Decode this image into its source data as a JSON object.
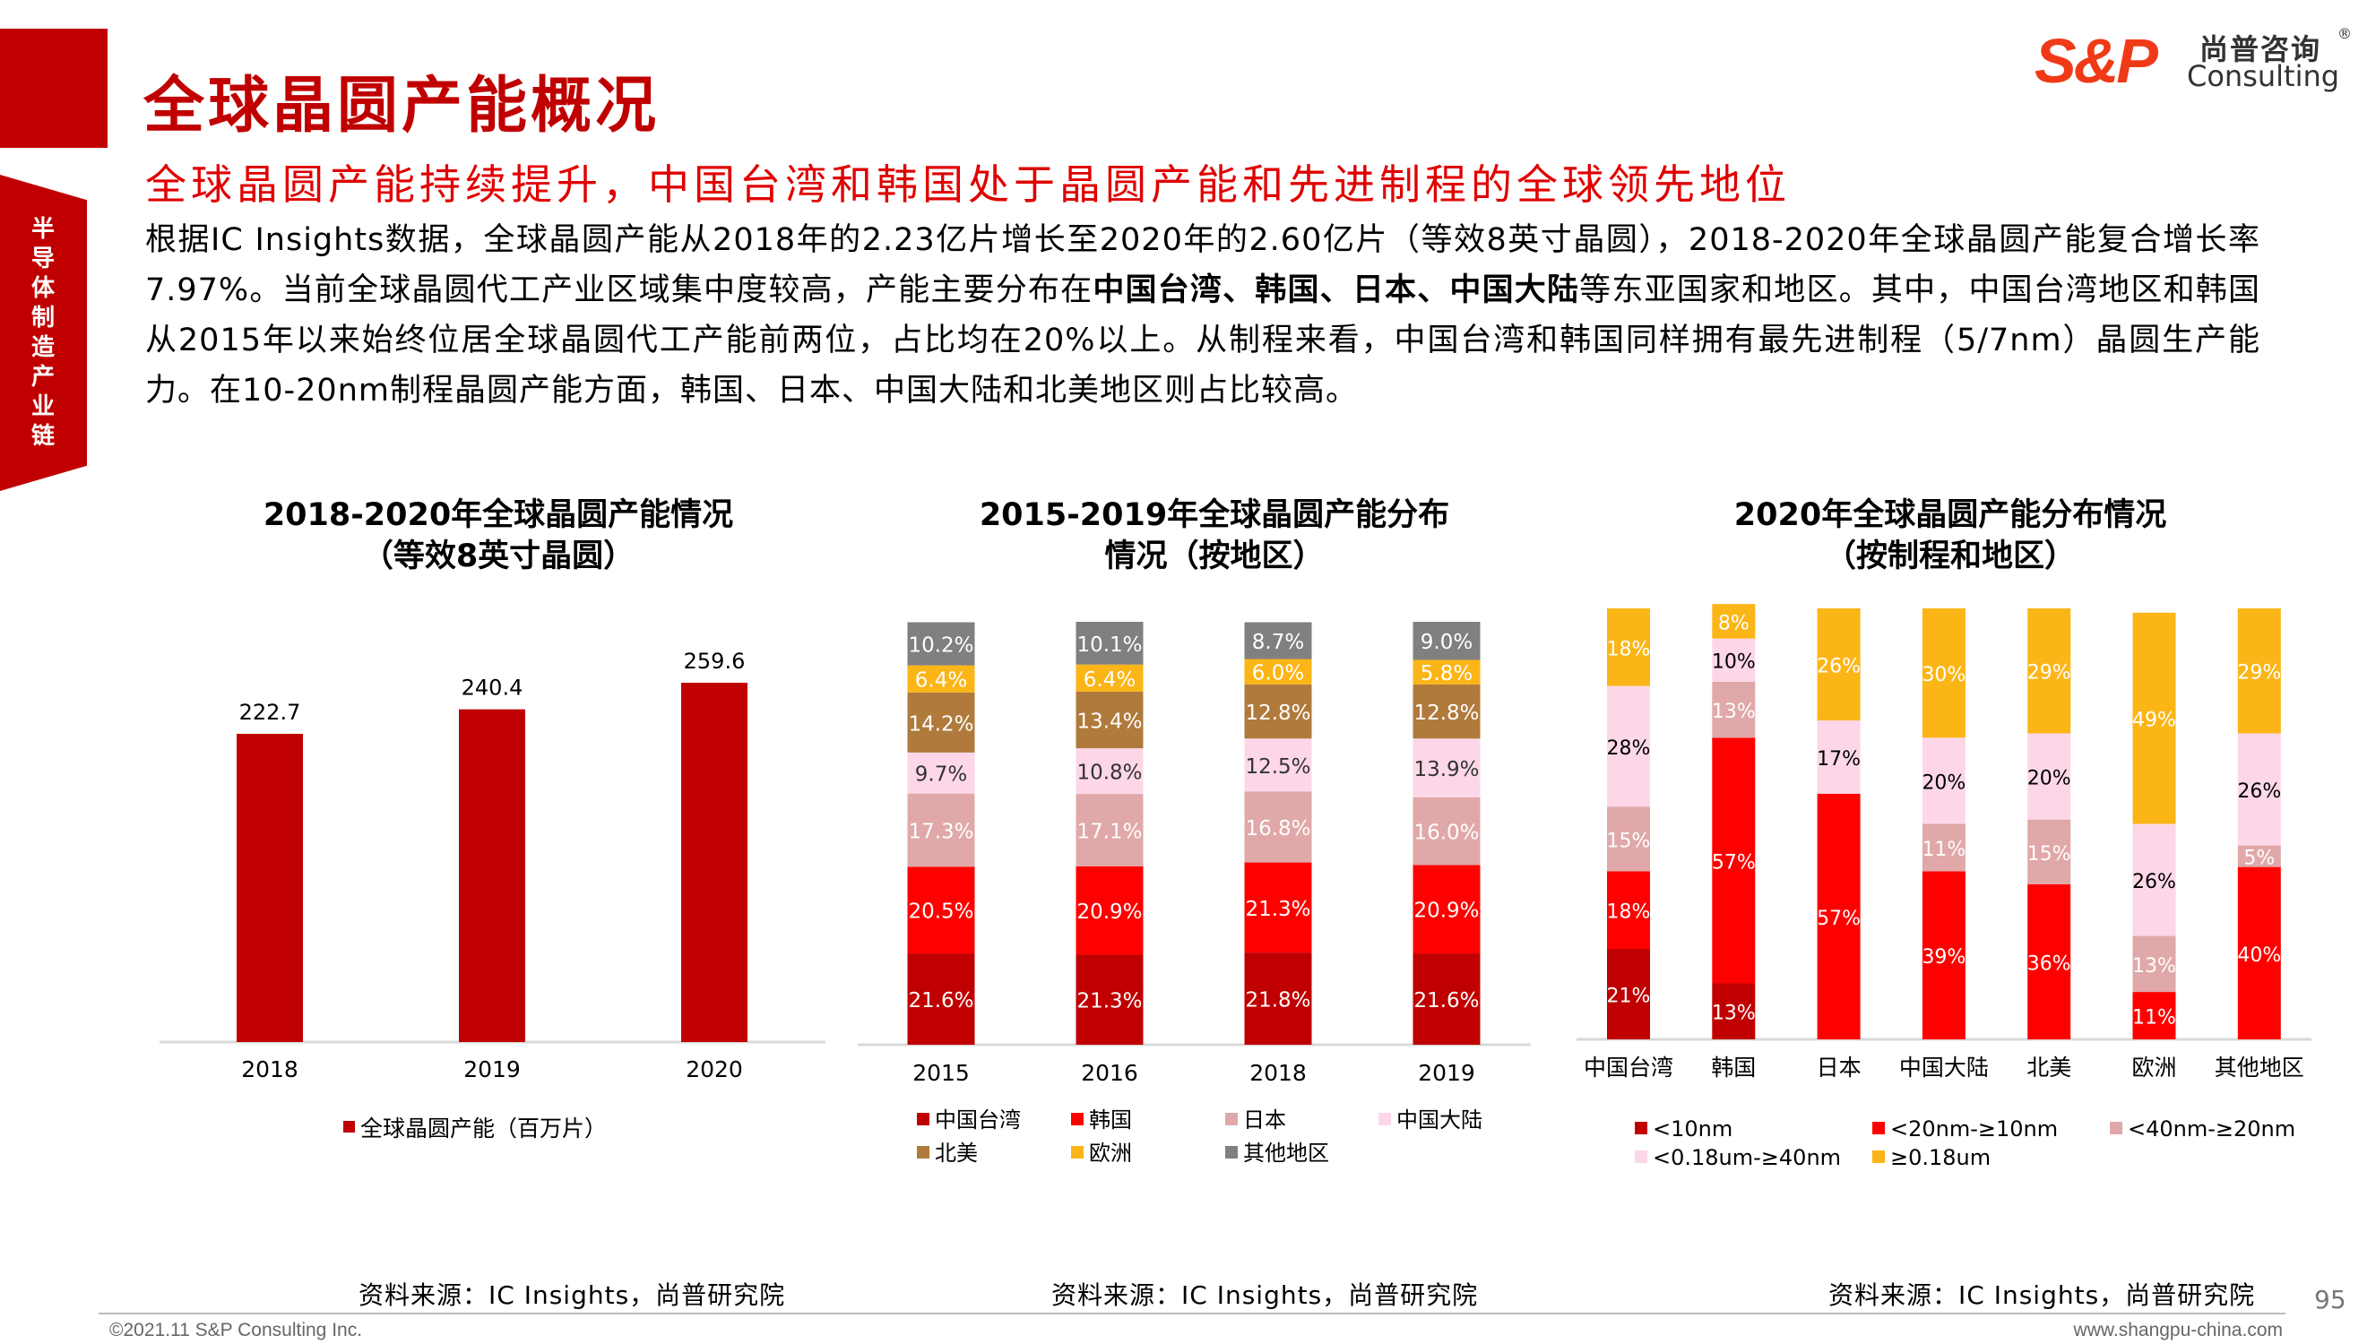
{
  "header": {
    "title": "全球晶圆产能概况",
    "subtitle": "全球晶圆产能持续提升，中国台湾和韩国处于晶圆产能和先进制程的全球领先地位",
    "section_tab": "半导体制造产业链"
  },
  "logo": {
    "mark": "S&P",
    "cn": "尚普咨询",
    "en": "Consulting",
    "reg": "®",
    "brand_color": "#F03A17"
  },
  "body": {
    "p1": "根据IC Insights数据，全球晶圆产能从2018年的2.23亿片增长至2020年的2.60亿片（等效8英寸晶圆），2018-2020年全球晶圆产能复合增长率7.97%。当前全球晶圆代工产业区域集中度较高，产能主要分布在",
    "bold1": "中国台湾、韩国、日本、中国大陆",
    "p2": "等东亚国家和地区。其中，中国台湾地区和韩国从2015年以来始终位居全球晶圆代工产能前两位，占比均在20%以上。从制程来看，中国台湾和韩国同样拥有最先进制程（5/7nm）晶圆生产能力。在10-20nm制程晶圆产能方面，韩国、日本、中国大陆和北美地区则占比较高。"
  },
  "chart_data": [
    {
      "type": "bar",
      "title": "2018-2020年全球晶圆产能情况",
      "subtitle": "（等效8英寸晶圆）",
      "categories": [
        "2018",
        "2019",
        "2020"
      ],
      "series": [
        {
          "name": "全球晶圆产能（百万片）",
          "color": "#C00000",
          "values": [
            222.7,
            240.4,
            259.6
          ]
        }
      ],
      "data_labels": [
        "222.7",
        "240.4",
        "259.6"
      ],
      "ylim": [
        0,
        300
      ],
      "grid": false,
      "legend": "bottom"
    },
    {
      "type": "bar",
      "stacked": true,
      "title": "2015-2019年全球晶圆产能分布",
      "subtitle": "情况（按地区）",
      "categories": [
        "2015",
        "2016",
        "2018",
        "2019"
      ],
      "series": [
        {
          "name": "中国台湾",
          "color": "#C00000",
          "label_color": "#FFFFFF",
          "values": [
            21.6,
            21.3,
            21.8,
            21.6
          ]
        },
        {
          "name": "韩国",
          "color": "#FF0000",
          "label_color": "#FFFFFF",
          "values": [
            20.5,
            20.9,
            21.3,
            20.9
          ]
        },
        {
          "name": "日本",
          "color": "#E0A8A8",
          "label_color": "#FFFFFF",
          "values": [
            17.3,
            17.1,
            16.8,
            16.0
          ]
        },
        {
          "name": "中国大陆",
          "color": "#FDD7E8",
          "label_color": "#333333",
          "values": [
            9.7,
            10.8,
            12.5,
            13.9
          ]
        },
        {
          "name": "北美",
          "color": "#B07A3C",
          "label_color": "#FFFFFF",
          "values": [
            14.2,
            13.4,
            12.8,
            12.8
          ]
        },
        {
          "name": "欧洲",
          "color": "#FBB516",
          "label_color": "#FFFFFF",
          "values": [
            6.4,
            6.4,
            6.0,
            5.8
          ]
        },
        {
          "name": "其他地区",
          "color": "#808080",
          "label_color": "#FFFFFF",
          "values": [
            10.2,
            10.1,
            8.7,
            9.0
          ]
        }
      ],
      "label_format": "one-decimal-percent",
      "ylim": [
        0,
        100
      ],
      "legend": "bottom"
    },
    {
      "type": "bar",
      "stacked": true,
      "title": "2020年全球晶圆产能分布情况",
      "subtitle": "（按制程和地区）",
      "categories": [
        "中国台湾",
        "韩国",
        "日本",
        "中国大陆",
        "北美",
        "欧洲",
        "其他地区"
      ],
      "series": [
        {
          "name": "<10nm",
          "color": "#C00000",
          "label_color": "#FFFFFF",
          "values": [
            21,
            13,
            0,
            0,
            0,
            0,
            0
          ]
        },
        {
          "name": "<20nm-≥10nm",
          "color": "#FF0000",
          "label_color": "#FFFFFF",
          "values": [
            18,
            57,
            57,
            39,
            36,
            11,
            40
          ]
        },
        {
          "name": "<40nm-≥20nm",
          "color": "#E0A8A8",
          "label_color": "#FFFFFF",
          "values": [
            15,
            13,
            0,
            11,
            15,
            13,
            5
          ]
        },
        {
          "name": "<0.18um-≥40nm",
          "color": "#FDD7E8",
          "label_color": "#000000",
          "values": [
            28,
            10,
            17,
            20,
            20,
            26,
            26
          ]
        },
        {
          "name": "≥0.18um",
          "color": "#FBB516",
          "label_color": "#FFFFFF",
          "values": [
            18,
            8,
            26,
            30,
            29,
            49,
            29
          ]
        }
      ],
      "label_format": "integer-percent",
      "ylim": [
        0,
        100
      ],
      "legend": "bottom"
    }
  ],
  "footer": {
    "source": "资料来源：IC Insights，尚普研究院",
    "page": "95",
    "copyright": "©2021.11  S&P Consulting Inc.",
    "website": "www.shangpu-china.com"
  }
}
